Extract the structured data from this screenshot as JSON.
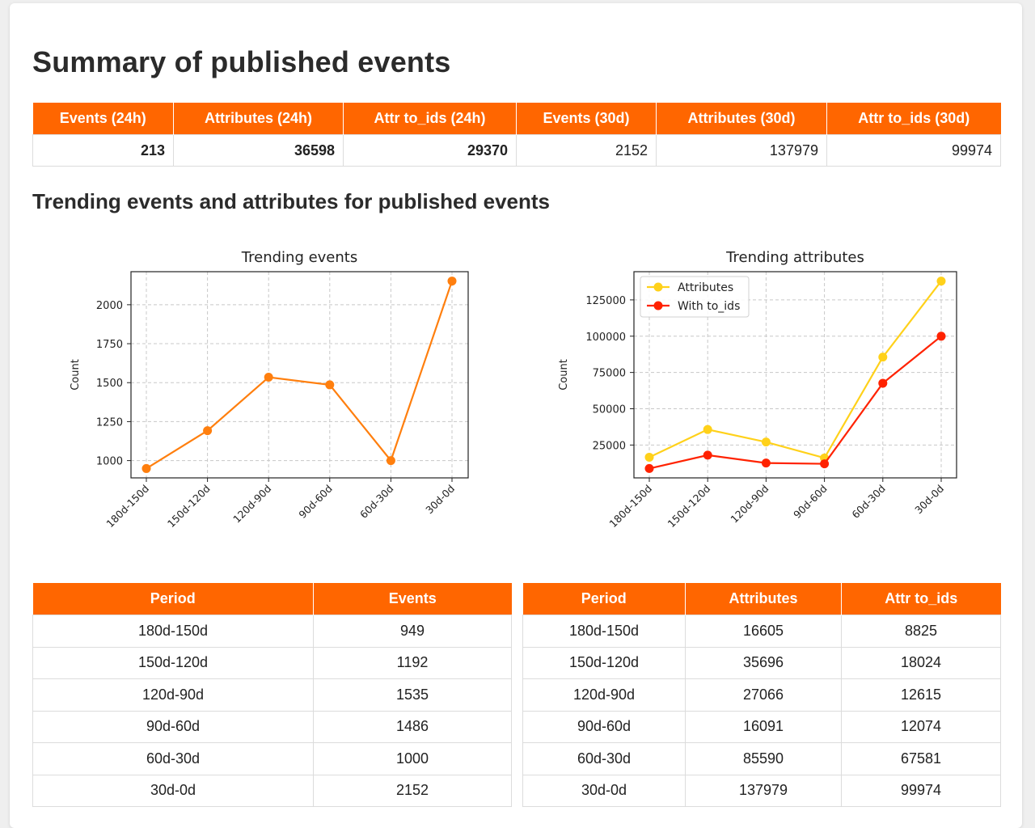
{
  "page": {
    "title": "Summary of published events",
    "subtitle": "Trending events and attributes for published events"
  },
  "summary": {
    "headers": [
      "Events (24h)",
      "Attributes (24h)",
      "Attr to_ids (24h)",
      "Events (30d)",
      "Attributes (30d)",
      "Attr to_ids (30d)"
    ],
    "values": [
      "213",
      "36598",
      "29370",
      "2152",
      "137979",
      "99974"
    ]
  },
  "colors": {
    "accent": "#ff6600",
    "events_line": "#ff7f0e",
    "attributes_line": "#ffd11a",
    "to_ids_line": "#ff2200"
  },
  "chart_data": [
    {
      "type": "line",
      "title": "Trending events",
      "xlabel": "",
      "ylabel": "Count",
      "categories": [
        "180d-150d",
        "150d-120d",
        "120d-90d",
        "90d-60d",
        "60d-30d",
        "30d-0d"
      ],
      "series": [
        {
          "values": [
            949,
            1192,
            1535,
            1486,
            1000,
            2152
          ]
        }
      ],
      "yticks": [
        1000,
        1250,
        1500,
        1750,
        2000
      ],
      "ylim": [
        889,
        2212
      ],
      "grid": true
    },
    {
      "type": "line",
      "title": "Trending attributes",
      "xlabel": "",
      "ylabel": "Count",
      "categories": [
        "180d-150d",
        "150d-120d",
        "120d-90d",
        "90d-60d",
        "60d-30d",
        "30d-0d"
      ],
      "series": [
        {
          "name": "Attributes",
          "values": [
            16605,
            35696,
            27066,
            16091,
            85590,
            137979
          ]
        },
        {
          "name": "With to_ids",
          "values": [
            8825,
            18024,
            12615,
            12074,
            67581,
            99974
          ]
        }
      ],
      "yticks": [
        25000,
        50000,
        75000,
        100000,
        125000
      ],
      "ylim": [
        2367,
        144437
      ],
      "legend": "top-left",
      "grid": true
    }
  ],
  "events_table": {
    "headers": [
      "Period",
      "Events"
    ],
    "rows": [
      [
        "180d-150d",
        "949"
      ],
      [
        "150d-120d",
        "1192"
      ],
      [
        "120d-90d",
        "1535"
      ],
      [
        "90d-60d",
        "1486"
      ],
      [
        "60d-30d",
        "1000"
      ],
      [
        "30d-0d",
        "2152"
      ]
    ]
  },
  "attributes_table": {
    "headers": [
      "Period",
      "Attributes",
      "Attr to_ids"
    ],
    "rows": [
      [
        "180d-150d",
        "16605",
        "8825"
      ],
      [
        "150d-120d",
        "35696",
        "18024"
      ],
      [
        "120d-90d",
        "27066",
        "12615"
      ],
      [
        "90d-60d",
        "16091",
        "12074"
      ],
      [
        "60d-30d",
        "85590",
        "67581"
      ],
      [
        "30d-0d",
        "137979",
        "99974"
      ]
    ]
  }
}
